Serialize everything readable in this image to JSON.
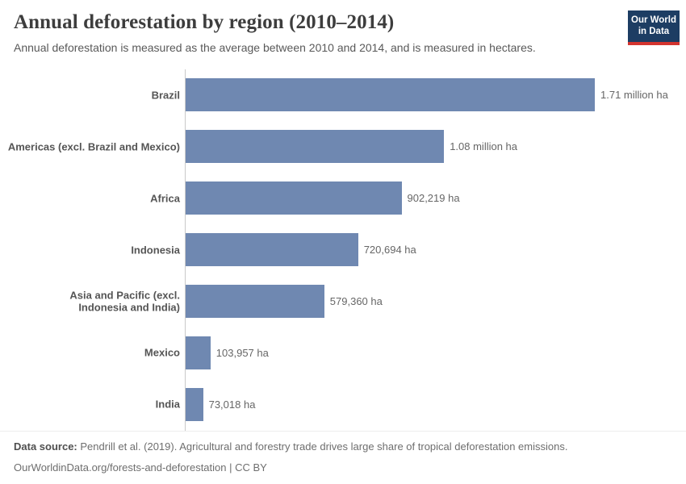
{
  "header": {
    "title": "Annual deforestation by region (2010–2014)",
    "subtitle": "Annual deforestation is measured as the average between 2010 and 2014, and is measured in hectares.",
    "logo": {
      "line1": "Our World",
      "line2": "in Data",
      "bg_color": "#1d3d63",
      "accent_color": "#d3342f"
    }
  },
  "chart_data": {
    "type": "bar",
    "orientation": "horizontal",
    "title": "Annual deforestation by region (2010–2014)",
    "xlabel": "",
    "ylabel": "",
    "unit": "hectares",
    "grid": false,
    "legend": "none",
    "xlim": [
      0,
      1710000
    ],
    "bar_color": "#6f88b1",
    "categories": [
      "Brazil",
      "Americas (excl. Brazil and Mexico)",
      "Africa",
      "Indonesia",
      "Asia and Pacific (excl. Indonesia and India)",
      "Mexico",
      "India"
    ],
    "values": [
      1710000,
      1080000,
      902219,
      720694,
      579360,
      103957,
      73018
    ],
    "value_labels": [
      "1.71 million ha",
      "1.08 million ha",
      "902,219 ha",
      "720,694 ha",
      "579,360 ha",
      "103,957 ha",
      "73,018 ha"
    ]
  },
  "footer": {
    "data_source_label": "Data source:",
    "data_source_text": "Pendrill et al. (2019). Agricultural and forestry trade drives large share of tropical deforestation emissions.",
    "link_line": "OurWorldinData.org/forests-and-deforestation | CC BY"
  }
}
